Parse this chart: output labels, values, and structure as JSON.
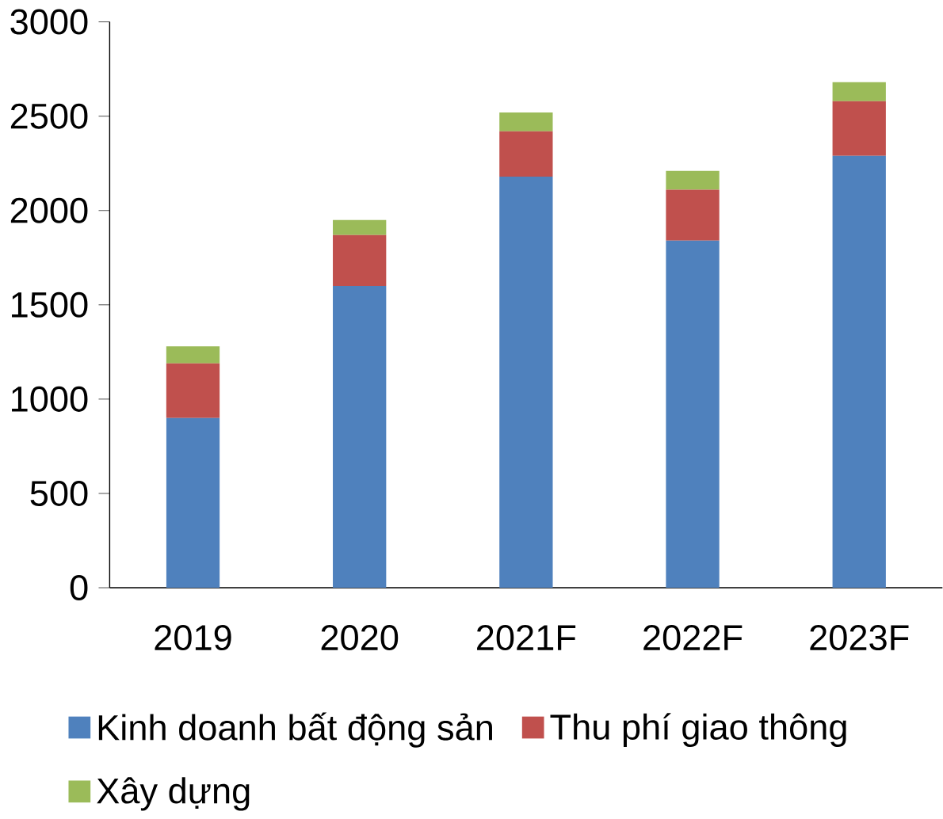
{
  "chart_data": {
    "type": "bar",
    "stacked": true,
    "categories": [
      "2019",
      "2020",
      "2021F",
      "2022F",
      "2023F"
    ],
    "series": [
      {
        "name": "Kinh doanh bất động sản",
        "color": "#4f81bd",
        "values": [
          900,
          1600,
          2180,
          1840,
          2290
        ]
      },
      {
        "name": "Thu phí giao thông",
        "color": "#c0504d",
        "values": [
          290,
          270,
          240,
          270,
          290
        ]
      },
      {
        "name": "Xây dựng",
        "color": "#9bbb59",
        "values": [
          90,
          80,
          100,
          100,
          100
        ]
      }
    ],
    "ylim": [
      0,
      3000
    ],
    "yticks": [
      0,
      500,
      1000,
      1500,
      2000,
      2500,
      3000
    ],
    "grid": false,
    "legend": "bottom"
  }
}
